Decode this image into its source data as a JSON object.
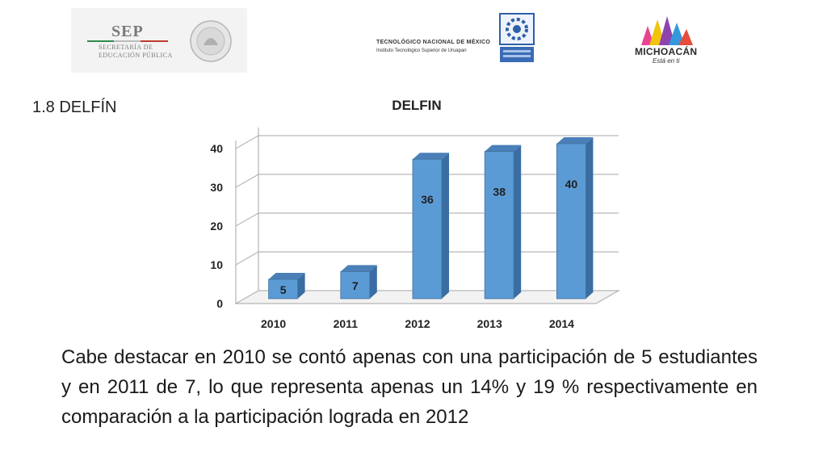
{
  "header": {
    "sep_title": "SEP",
    "sep_sub1": "SECRETARÍA DE",
    "sep_sub2": "EDUCACIÓN PÚBLICA",
    "tecnm_line1": "TECNOLÓGICO NACIONAL DE MÉXICO",
    "tecnm_line2": "Instituto Tecnológico Superior de Uruapan",
    "michoacan_name": "MICHOACÁN",
    "michoacan_tag": "Está en ti",
    "icons": [
      "seal-icon",
      "itsu-logo-icon",
      "michoacan-logo-icon"
    ]
  },
  "section_title": "1.8 DELFÍN",
  "chart_data": {
    "type": "bar",
    "title": "DELFIN",
    "categories": [
      "2010",
      "2011",
      "2012",
      "2013",
      "2014"
    ],
    "values": [
      5,
      7,
      36,
      38,
      40
    ],
    "ylim": [
      0,
      40
    ],
    "yticks": [
      "0",
      "10",
      "20",
      "30",
      "40"
    ],
    "xlabel": "",
    "ylabel": "",
    "grid": true,
    "legend": "none",
    "colors": {
      "bar_front": "#5b9bd5",
      "bar_side": "#3a6ea3",
      "bar_top": "#4a7fb8"
    }
  },
  "body_text": "Cabe destacar en 2010 se contó apenas con una participación de 5 estudiantes y en 2011 de 7, lo que representa apenas un 14% y 19 % respectivamente en comparación a la participación lograda en 2012"
}
